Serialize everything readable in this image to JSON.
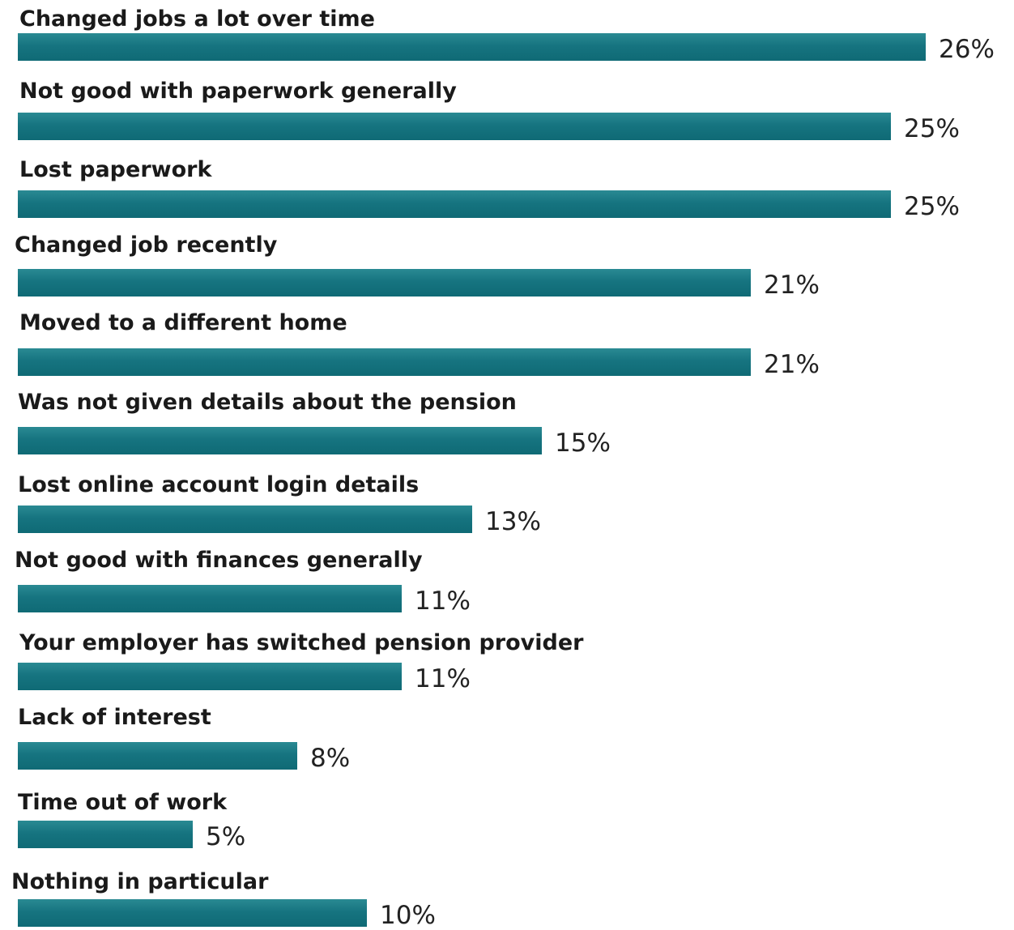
{
  "chart_data": {
    "type": "bar",
    "orientation": "horizontal",
    "categories": [
      "Changed jobs a lot over time",
      "Not good with paperwork generally",
      "Lost paperwork",
      "Changed job recently",
      "Moved to a different home",
      "Was not given details about the pension",
      "Lost online account login details",
      "Not good with finances generally",
      "Your employer has switched pension provider",
      "Lack of interest",
      "Time out of work",
      "Nothing in particular"
    ],
    "values": [
      26,
      25,
      25,
      21,
      21,
      15,
      13,
      11,
      11,
      8,
      5,
      10
    ],
    "value_labels": [
      "26%",
      "25%",
      "25%",
      "21%",
      "21%",
      "15%",
      "13%",
      "11%",
      "11%",
      "8%",
      "5%",
      "10%"
    ],
    "unit": "%",
    "xlim": [
      0,
      26
    ],
    "grid": false,
    "legend": "none",
    "bar_color": "#137480",
    "title": "",
    "xlabel": "",
    "ylabel": ""
  }
}
